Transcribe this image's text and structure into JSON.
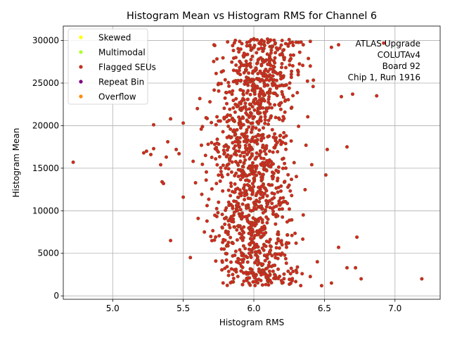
{
  "chart_data": {
    "type": "scatter",
    "title": "Histogram Mean vs Histogram RMS for Channel 6",
    "xlabel": "Histogram RMS",
    "ylabel": "Histogram Mean",
    "xlim": [
      4.65,
      7.32
    ],
    "ylim": [
      -400,
      31700
    ],
    "xticks": [
      5.0,
      5.5,
      6.0,
      6.5,
      7.0
    ],
    "xtick_labels": [
      "5.0",
      "5.5",
      "6.0",
      "6.5",
      "7.0"
    ],
    "yticks": [
      0,
      5000,
      10000,
      15000,
      20000,
      25000,
      30000
    ],
    "ytick_labels": [
      "0",
      "5000",
      "10000",
      "15000",
      "20000",
      "25000",
      "30000"
    ],
    "grid": true,
    "legend_position": "top-left",
    "series": [
      {
        "name": "Skewed",
        "color": "#ffff00",
        "points": []
      },
      {
        "name": "Multimodal",
        "color": "#adff2f",
        "points": []
      },
      {
        "name": "Flagged SEUs",
        "color": "#d62728",
        "edge": "#8b4513",
        "points": [
          [
            4.72,
            15700
          ],
          [
            5.22,
            16800
          ],
          [
            5.24,
            17000
          ],
          [
            5.27,
            16600
          ],
          [
            5.29,
            17300
          ],
          [
            5.29,
            20100
          ],
          [
            5.34,
            15400
          ],
          [
            5.35,
            13400
          ],
          [
            5.36,
            13200
          ],
          [
            5.38,
            16300
          ],
          [
            5.39,
            18100
          ],
          [
            5.41,
            6500
          ],
          [
            5.41,
            20800
          ],
          [
            5.45,
            17200
          ],
          [
            5.47,
            16700
          ],
          [
            5.5,
            11600
          ],
          [
            5.5,
            20300
          ],
          [
            6.55,
            29200
          ],
          [
            6.6,
            29500
          ],
          [
            6.62,
            23400
          ],
          [
            6.66,
            17500
          ],
          [
            6.7,
            23700
          ],
          [
            6.72,
            3300
          ],
          [
            6.73,
            6900
          ],
          [
            6.76,
            2000
          ],
          [
            6.87,
            23500
          ],
          [
            6.92,
            29700
          ],
          [
            7.19,
            2000
          ],
          [
            6.55,
            1500
          ],
          [
            6.6,
            5700
          ],
          [
            6.66,
            3300
          ],
          [
            6.48,
            1200
          ],
          [
            6.52,
            17200
          ],
          [
            6.51,
            14200
          ],
          [
            6.0,
            30200
          ],
          [
            6.1,
            30100
          ],
          [
            6.2,
            30000
          ],
          [
            6.3,
            29800
          ],
          [
            5.9,
            29900
          ],
          [
            6.35,
            29500
          ],
          [
            6.05,
            29700
          ],
          [
            6.15,
            29600
          ],
          [
            5.85,
            29400
          ],
          [
            6.25,
            30100
          ],
          [
            5.8,
            15000
          ],
          [
            5.9,
            12000
          ],
          [
            6.1,
            9000
          ],
          [
            6.2,
            6000
          ],
          [
            6.3,
            3000
          ],
          [
            5.7,
            18000
          ],
          [
            5.6,
            22000
          ],
          [
            6.4,
            27000
          ],
          [
            5.95,
            25000
          ],
          [
            6.05,
            21000
          ],
          [
            6.15,
            17500
          ],
          [
            5.75,
            11000
          ],
          [
            6.25,
            13000
          ],
          [
            5.65,
            7500
          ],
          [
            6.35,
            9500
          ],
          [
            5.55,
            4500
          ],
          [
            6.45,
            4000
          ],
          [
            5.85,
            2500
          ],
          [
            6.2,
            1500
          ],
          [
            6.05,
            1800
          ]
        ]
      },
      {
        "name": "Repeat Bin",
        "color": "#800080",
        "points": []
      },
      {
        "name": "Overflow",
        "color": "#ff8c00",
        "points": []
      }
    ],
    "annotation": [
      "ATLAS Upgrade",
      "COLUTAv4",
      "Board 92",
      "Chip 1, Run 1916"
    ]
  }
}
